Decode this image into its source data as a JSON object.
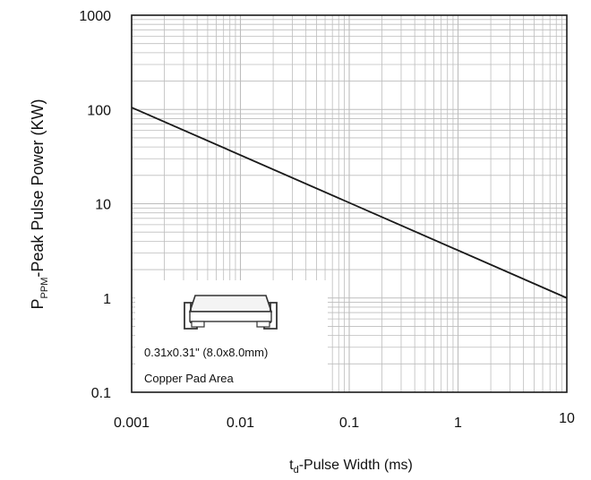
{
  "chart_data": {
    "type": "line",
    "title": "",
    "xlabel": {
      "main": "t",
      "sub": "d",
      "rest": "-Pulse Width (ms)"
    },
    "ylabel": {
      "main": "P",
      "sub": "PPM",
      "rest": "-Peak Pulse Power (KW)"
    },
    "x_scale": "log",
    "y_scale": "log",
    "xlim": [
      0.001,
      10
    ],
    "ylim": [
      0.1,
      1000
    ],
    "grid": true,
    "x_ticks": [
      {
        "value": 0.001,
        "label": "0.001"
      },
      {
        "value": 0.01,
        "label": "0.01"
      },
      {
        "value": 0.1,
        "label": "0.1"
      },
      {
        "value": 1,
        "label": "1"
      },
      {
        "value": 10,
        "label": "10"
      }
    ],
    "y_ticks": [
      {
        "value": 0.1,
        "label": "0.1"
      },
      {
        "value": 1,
        "label": "1"
      },
      {
        "value": 10,
        "label": "10"
      },
      {
        "value": 100,
        "label": "100"
      },
      {
        "value": 1000,
        "label": "1000"
      }
    ],
    "series": [
      {
        "x": [
          0.001,
          10
        ],
        "y": [
          105,
          1.0
        ]
      }
    ],
    "inset": {
      "lines": [
        "0.31x0.31\" (8.0x8.0mm)",
        "Copper Pad Area"
      ],
      "placement": "bottom-left"
    },
    "colors": {
      "line": "#1a1a1a",
      "grid": "#bdbdbd",
      "frame": "#1a1a1a"
    }
  }
}
